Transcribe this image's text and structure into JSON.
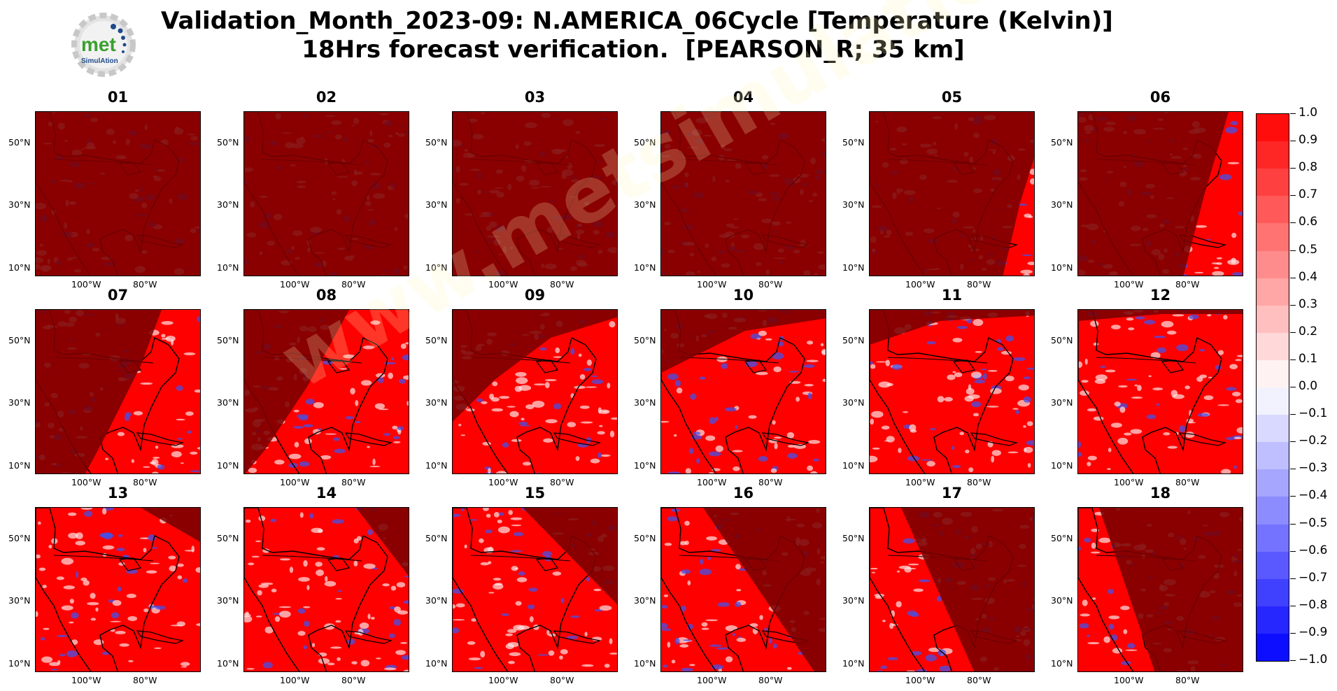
{
  "title": {
    "line1": "Validation_Month_2023-09: N.AMERICA_06Cycle [Temperature (Kelvin)]",
    "line2": "18Hrs forecast verification.  [PEARSON_R; 35 km]"
  },
  "logo": {
    "line1": "met",
    "line2": "SimulAtion"
  },
  "watermark": "www.metsimulation.com",
  "axis_labels": {
    "lat": [
      "50°N",
      "30°N",
      "10°N"
    ],
    "lon": [
      "100°W",
      "80°W"
    ]
  },
  "panels": [
    "01",
    "02",
    "03",
    "04",
    "05",
    "06",
    "07",
    "08",
    "09",
    "10",
    "11",
    "12",
    "13",
    "14",
    "15",
    "16",
    "17",
    "18"
  ],
  "colors": {
    "positive": "#ff0000",
    "negative": "#0000ff",
    "night": "#7a0000"
  },
  "colorbar": {
    "min": -1.0,
    "max": 1.0,
    "step": 0.1,
    "labels": [
      "1.0",
      "0.9",
      "0.8",
      "0.7",
      "0.6",
      "0.5",
      "0.4",
      "0.3",
      "0.2",
      "0.1",
      "0.0",
      "−0.1",
      "−0.2",
      "−0.3",
      "−0.4",
      "−0.5",
      "−0.6",
      "−0.7",
      "−0.8",
      "−0.9",
      "−1.0"
    ]
  }
}
